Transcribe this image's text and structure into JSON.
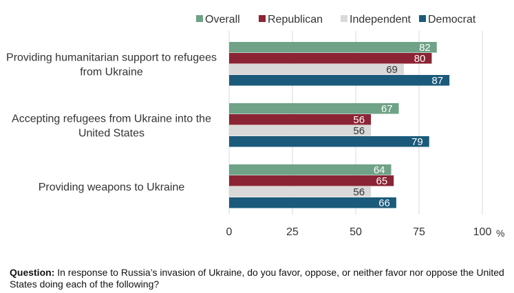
{
  "chart_data": {
    "type": "bar",
    "orientation": "horizontal",
    "categories": [
      [
        "Providing humanitarian support to refugees",
        "from Ukraine"
      ],
      [
        "Accepting refugees from Ukraine into the",
        "United States"
      ],
      [
        "Providing weapons to Ukraine"
      ]
    ],
    "series": [
      {
        "name": "Overall",
        "color": "#6fa287",
        "label_color": "#ffffff",
        "values": [
          82,
          67,
          64
        ]
      },
      {
        "name": "Republican",
        "color": "#8b2435",
        "label_color": "#ffffff",
        "values": [
          80,
          56,
          65
        ]
      },
      {
        "name": "Independent",
        "color": "#d9d9d9",
        "label_color": "#333333",
        "values": [
          69,
          56,
          56
        ]
      },
      {
        "name": "Democrat",
        "color": "#1b5a7a",
        "label_color": "#ffffff",
        "values": [
          87,
          79,
          66
        ]
      }
    ],
    "xlim": [
      0,
      100
    ],
    "xticks": [
      0,
      25,
      50,
      75,
      100
    ],
    "xunit": "%",
    "grid": true,
    "legend_position": "top"
  },
  "footer": {
    "question_prefix": "Question:",
    "question_text": " In response to Russia’s invasion of Ukraine, do you favor, oppose, or neither favor nor oppose the United States doing each of the following?"
  }
}
